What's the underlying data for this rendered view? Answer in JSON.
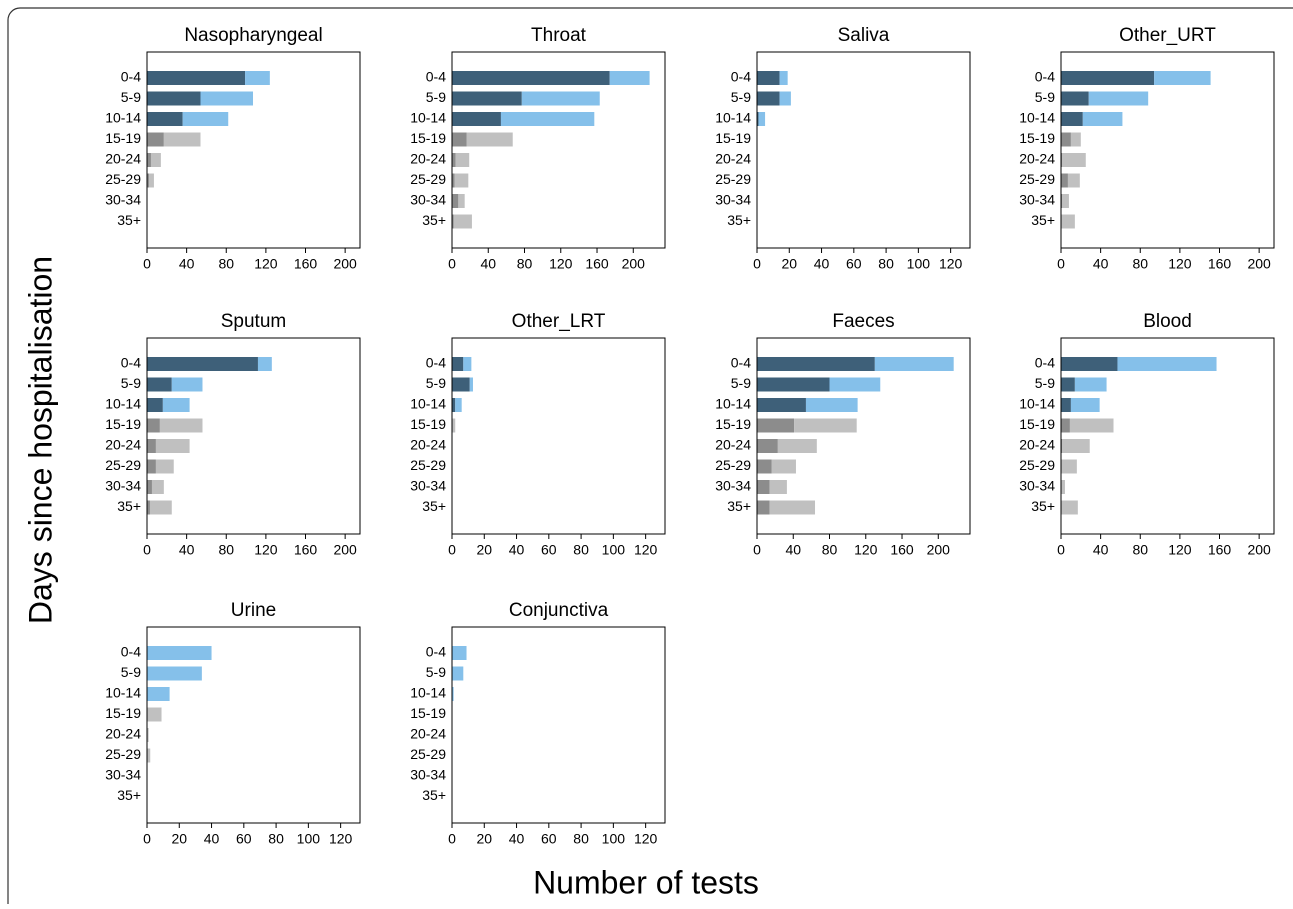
{
  "ylabel": "Days since hospitalisation",
  "xlabel": "Number of tests",
  "chart_data": [
    {
      "type": "hbar-stacked",
      "title": "Nasopharyngeal",
      "categories": [
        "0-4",
        "5-9",
        "10-14",
        "15-19",
        "20-24",
        "25-29",
        "30-34",
        "35+"
      ],
      "xlim": [
        0,
        215
      ],
      "xticks": [
        0,
        40,
        80,
        120,
        160,
        200
      ],
      "series": [
        {
          "color": [
            "#3e6079",
            "#3e6079",
            "#3e6079",
            "#8c8c8c",
            "#8c8c8c",
            "#8c8c8c",
            "#8c8c8c",
            "#8c8c8c"
          ],
          "values": [
            99,
            54,
            36,
            17,
            4,
            2,
            0,
            0
          ]
        },
        {
          "color": [
            "#85c0ea",
            "#85c0ea",
            "#85c0ea",
            "#c0c0c0",
            "#c0c0c0",
            "#c0c0c0",
            "#c0c0c0",
            "#c0c0c0"
          ],
          "values": [
            25,
            53,
            46,
            37,
            10,
            5,
            0,
            0
          ]
        }
      ]
    },
    {
      "type": "hbar-stacked",
      "title": "Throat",
      "categories": [
        "0-4",
        "5-9",
        "10-14",
        "15-19",
        "20-24",
        "25-29",
        "30-34",
        "35+"
      ],
      "xlim": [
        0,
        235
      ],
      "xticks": [
        0,
        40,
        80,
        120,
        160,
        200
      ],
      "series": [
        {
          "color": [
            "#3e6079",
            "#3e6079",
            "#3e6079",
            "#8c8c8c",
            "#8c8c8c",
            "#8c8c8c",
            "#8c8c8c",
            "#8c8c8c"
          ],
          "values": [
            174,
            77,
            54,
            16,
            4,
            3,
            7,
            2
          ]
        },
        {
          "color": [
            "#85c0ea",
            "#85c0ea",
            "#85c0ea",
            "#c0c0c0",
            "#c0c0c0",
            "#c0c0c0",
            "#c0c0c0",
            "#c0c0c0"
          ],
          "values": [
            44,
            86,
            103,
            51,
            15,
            15,
            7,
            20
          ]
        }
      ]
    },
    {
      "type": "hbar-stacked",
      "title": "Saliva",
      "categories": [
        "0-4",
        "5-9",
        "10-14",
        "15-19",
        "20-24",
        "25-29",
        "30-34",
        "35+"
      ],
      "xlim": [
        0,
        132
      ],
      "xticks": [
        0,
        20,
        40,
        60,
        80,
        100,
        120
      ],
      "series": [
        {
          "color": [
            "#3e6079",
            "#3e6079",
            "#3e6079",
            "#8c8c8c",
            "#8c8c8c",
            "#8c8c8c",
            "#8c8c8c",
            "#8c8c8c"
          ],
          "values": [
            14,
            14,
            1,
            0,
            0,
            0,
            0,
            0
          ]
        },
        {
          "color": [
            "#85c0ea",
            "#85c0ea",
            "#85c0ea",
            "#c0c0c0",
            "#c0c0c0",
            "#c0c0c0",
            "#c0c0c0",
            "#c0c0c0"
          ],
          "values": [
            5,
            7,
            4,
            0,
            0,
            0,
            0,
            0
          ]
        }
      ]
    },
    {
      "type": "hbar-stacked",
      "title": "Other_URT",
      "categories": [
        "0-4",
        "5-9",
        "10-14",
        "15-19",
        "20-24",
        "25-29",
        "30-34",
        "35+"
      ],
      "xlim": [
        0,
        215
      ],
      "xticks": [
        0,
        40,
        80,
        120,
        160,
        200
      ],
      "series": [
        {
          "color": [
            "#3e6079",
            "#3e6079",
            "#3e6079",
            "#8c8c8c",
            "#8c8c8c",
            "#8c8c8c",
            "#8c8c8c",
            "#8c8c8c"
          ],
          "values": [
            94,
            28,
            22,
            10,
            1,
            7,
            1,
            0
          ]
        },
        {
          "color": [
            "#85c0ea",
            "#85c0ea",
            "#85c0ea",
            "#c0c0c0",
            "#c0c0c0",
            "#c0c0c0",
            "#c0c0c0",
            "#c0c0c0"
          ],
          "values": [
            57,
            60,
            40,
            10,
            24,
            12,
            7,
            14
          ]
        }
      ]
    },
    {
      "type": "hbar-stacked",
      "title": "Sputum",
      "categories": [
        "0-4",
        "5-9",
        "10-14",
        "15-19",
        "20-24",
        "25-29",
        "30-34",
        "35+"
      ],
      "xlim": [
        0,
        215
      ],
      "xticks": [
        0,
        40,
        80,
        120,
        160,
        200
      ],
      "series": [
        {
          "color": [
            "#3e6079",
            "#3e6079",
            "#3e6079",
            "#8c8c8c",
            "#8c8c8c",
            "#8c8c8c",
            "#8c8c8c",
            "#8c8c8c"
          ],
          "values": [
            112,
            25,
            16,
            13,
            9,
            9,
            5,
            3
          ]
        },
        {
          "color": [
            "#85c0ea",
            "#85c0ea",
            "#85c0ea",
            "#c0c0c0",
            "#c0c0c0",
            "#c0c0c0",
            "#c0c0c0",
            "#c0c0c0"
          ],
          "values": [
            14,
            31,
            27,
            43,
            34,
            18,
            12,
            22
          ]
        }
      ]
    },
    {
      "type": "hbar-stacked",
      "title": "Other_LRT",
      "categories": [
        "0-4",
        "5-9",
        "10-14",
        "15-19",
        "20-24",
        "25-29",
        "30-34",
        "35+"
      ],
      "xlim": [
        0,
        132
      ],
      "xticks": [
        0,
        20,
        40,
        60,
        80,
        100,
        120
      ],
      "series": [
        {
          "color": [
            "#3e6079",
            "#3e6079",
            "#3e6079",
            "#8c8c8c",
            "#8c8c8c",
            "#8c8c8c",
            "#8c8c8c",
            "#8c8c8c"
          ],
          "values": [
            7,
            11,
            2,
            0,
            0,
            0,
            0,
            0
          ]
        },
        {
          "color": [
            "#85c0ea",
            "#85c0ea",
            "#85c0ea",
            "#c0c0c0",
            "#c0c0c0",
            "#c0c0c0",
            "#c0c0c0",
            "#c0c0c0"
          ],
          "values": [
            5,
            2,
            4,
            2,
            0,
            0,
            0,
            0
          ]
        }
      ]
    },
    {
      "type": "hbar-stacked",
      "title": "Faeces",
      "categories": [
        "0-4",
        "5-9",
        "10-14",
        "15-19",
        "20-24",
        "25-29",
        "30-34",
        "35+"
      ],
      "xlim": [
        0,
        235
      ],
      "xticks": [
        0,
        40,
        80,
        120,
        160,
        200
      ],
      "series": [
        {
          "color": [
            "#3e6079",
            "#3e6079",
            "#3e6079",
            "#8c8c8c",
            "#8c8c8c",
            "#8c8c8c",
            "#8c8c8c",
            "#8c8c8c"
          ],
          "values": [
            130,
            80,
            54,
            41,
            23,
            16,
            14,
            14
          ]
        },
        {
          "color": [
            "#85c0ea",
            "#85c0ea",
            "#85c0ea",
            "#c0c0c0",
            "#c0c0c0",
            "#c0c0c0",
            "#c0c0c0",
            "#c0c0c0"
          ],
          "values": [
            87,
            56,
            57,
            69,
            43,
            27,
            19,
            50
          ]
        }
      ]
    },
    {
      "type": "hbar-stacked",
      "title": "Blood",
      "categories": [
        "0-4",
        "5-9",
        "10-14",
        "15-19",
        "20-24",
        "25-29",
        "30-34",
        "35+"
      ],
      "xlim": [
        0,
        215
      ],
      "xticks": [
        0,
        40,
        80,
        120,
        160,
        200
      ],
      "series": [
        {
          "color": [
            "#3e6079",
            "#3e6079",
            "#3e6079",
            "#8c8c8c",
            "#8c8c8c",
            "#8c8c8c",
            "#8c8c8c",
            "#8c8c8c"
          ],
          "values": [
            57,
            14,
            10,
            9,
            1,
            0,
            0,
            0
          ]
        },
        {
          "color": [
            "#85c0ea",
            "#85c0ea",
            "#85c0ea",
            "#c0c0c0",
            "#c0c0c0",
            "#c0c0c0",
            "#c0c0c0",
            "#c0c0c0"
          ],
          "values": [
            100,
            32,
            29,
            44,
            28,
            16,
            4,
            17
          ]
        }
      ]
    },
    {
      "type": "hbar-stacked",
      "title": "Urine",
      "categories": [
        "0-4",
        "5-9",
        "10-14",
        "15-19",
        "20-24",
        "25-29",
        "30-34",
        "35+"
      ],
      "xlim": [
        0,
        132
      ],
      "xticks": [
        0,
        20,
        40,
        60,
        80,
        100,
        120
      ],
      "series": [
        {
          "color": [
            "#3e6079",
            "#3e6079",
            "#3e6079",
            "#8c8c8c",
            "#8c8c8c",
            "#8c8c8c",
            "#8c8c8c",
            "#8c8c8c"
          ],
          "values": [
            0,
            0,
            0,
            0,
            0,
            0,
            0,
            0
          ]
        },
        {
          "color": [
            "#85c0ea",
            "#85c0ea",
            "#85c0ea",
            "#c0c0c0",
            "#c0c0c0",
            "#c0c0c0",
            "#c0c0c0",
            "#c0c0c0"
          ],
          "values": [
            40,
            34,
            14,
            9,
            1,
            2,
            0,
            0
          ]
        }
      ]
    },
    {
      "type": "hbar-stacked",
      "title": "Conjunctiva",
      "categories": [
        "0-4",
        "5-9",
        "10-14",
        "15-19",
        "20-24",
        "25-29",
        "30-34",
        "35+"
      ],
      "xlim": [
        0,
        132
      ],
      "xticks": [
        0,
        20,
        40,
        60,
        80,
        100,
        120
      ],
      "series": [
        {
          "color": [
            "#3e6079",
            "#3e6079",
            "#3e6079",
            "#8c8c8c",
            "#8c8c8c",
            "#8c8c8c",
            "#8c8c8c",
            "#8c8c8c"
          ],
          "values": [
            0,
            0,
            0,
            0,
            0,
            0,
            0,
            0
          ]
        },
        {
          "color": [
            "#85c0ea",
            "#85c0ea",
            "#85c0ea",
            "#c0c0c0",
            "#c0c0c0",
            "#c0c0c0",
            "#c0c0c0",
            "#c0c0c0"
          ],
          "values": [
            9,
            7,
            1,
            0,
            0,
            0,
            0,
            0
          ]
        }
      ]
    }
  ]
}
